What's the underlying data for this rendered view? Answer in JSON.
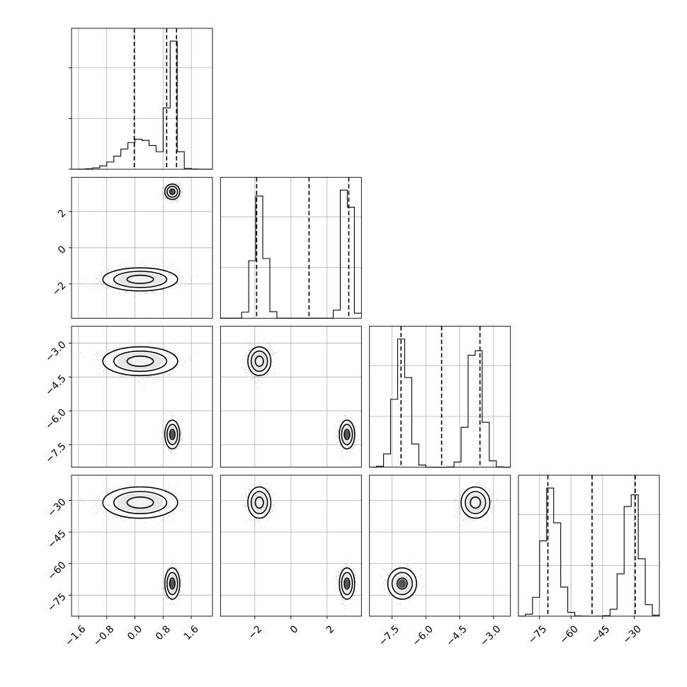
{
  "chart_data": {
    "type": "corner",
    "title": "",
    "variables": [
      {
        "range": [
          -1.8,
          2.2
        ],
        "ticks": [
          -1.6,
          -0.8,
          0.0,
          0.8,
          1.6
        ],
        "tick_labels": [
          "−1.6",
          "−0.8",
          "0.0",
          "0.8",
          "1.6"
        ],
        "quantiles": [
          -0.02,
          0.9,
          1.18
        ],
        "modes": [
          {
            "mean": 0.15,
            "sd": 0.5,
            "weight": 0.5
          },
          {
            "mean": 1.06,
            "sd": 0.1,
            "weight": 0.5
          }
        ]
      },
      {
        "range": [
          -3.9,
          3.9
        ],
        "ticks": [
          -2,
          0,
          2
        ],
        "tick_labels": [
          "−2",
          "0",
          "2"
        ],
        "quantiles": [
          -1.9,
          1.0,
          3.2
        ],
        "modes": [
          {
            "mean": -1.75,
            "sd": 0.3,
            "weight": 0.5
          },
          {
            "mean": 3.1,
            "sd": 0.2,
            "weight": 0.5
          }
        ]
      },
      {
        "range": [
          -8.5,
          -2.25
        ],
        "ticks": [
          -7.5,
          -6.0,
          -4.5,
          -3.0
        ],
        "tick_labels": [
          "−7.5",
          "−6.0",
          "−4.5",
          "−3.0"
        ],
        "quantiles": [
          -7.1,
          -5.3,
          -3.6
        ],
        "modes": [
          {
            "mean": -7.05,
            "sd": 0.3,
            "weight": 0.5
          },
          {
            "mean": -3.8,
            "sd": 0.3,
            "weight": 0.5
          }
        ]
      },
      {
        "range": [
          -85,
          -18
        ],
        "ticks": [
          -75,
          -60,
          -45,
          -30
        ],
        "tick_labels": [
          "−75",
          "−60",
          "−45",
          "−30"
        ],
        "quantiles": [
          -71,
          -50,
          -29.5
        ],
        "modes": [
          {
            "mean": -69.5,
            "sd": 3.5,
            "weight": 0.5
          },
          {
            "mean": -31.0,
            "sd": 3.5,
            "weight": 0.5
          }
        ]
      }
    ],
    "histogram": {
      "bins": 20,
      "ytick_fractions": [
        0.4,
        0.8
      ]
    },
    "joint_modes": [
      {
        "means": [
          0.15,
          -1.75,
          -3.8,
          -31.0
        ],
        "sds": [
          0.5,
          0.3,
          0.3,
          3.5
        ]
      },
      {
        "means": [
          1.06,
          3.1,
          -7.05,
          -69.5
        ],
        "sds": [
          0.1,
          0.2,
          0.3,
          3.5
        ]
      }
    ],
    "contour_levels_sigma": [
      0.6,
      1.2,
      1.7
    ],
    "grid": true
  }
}
